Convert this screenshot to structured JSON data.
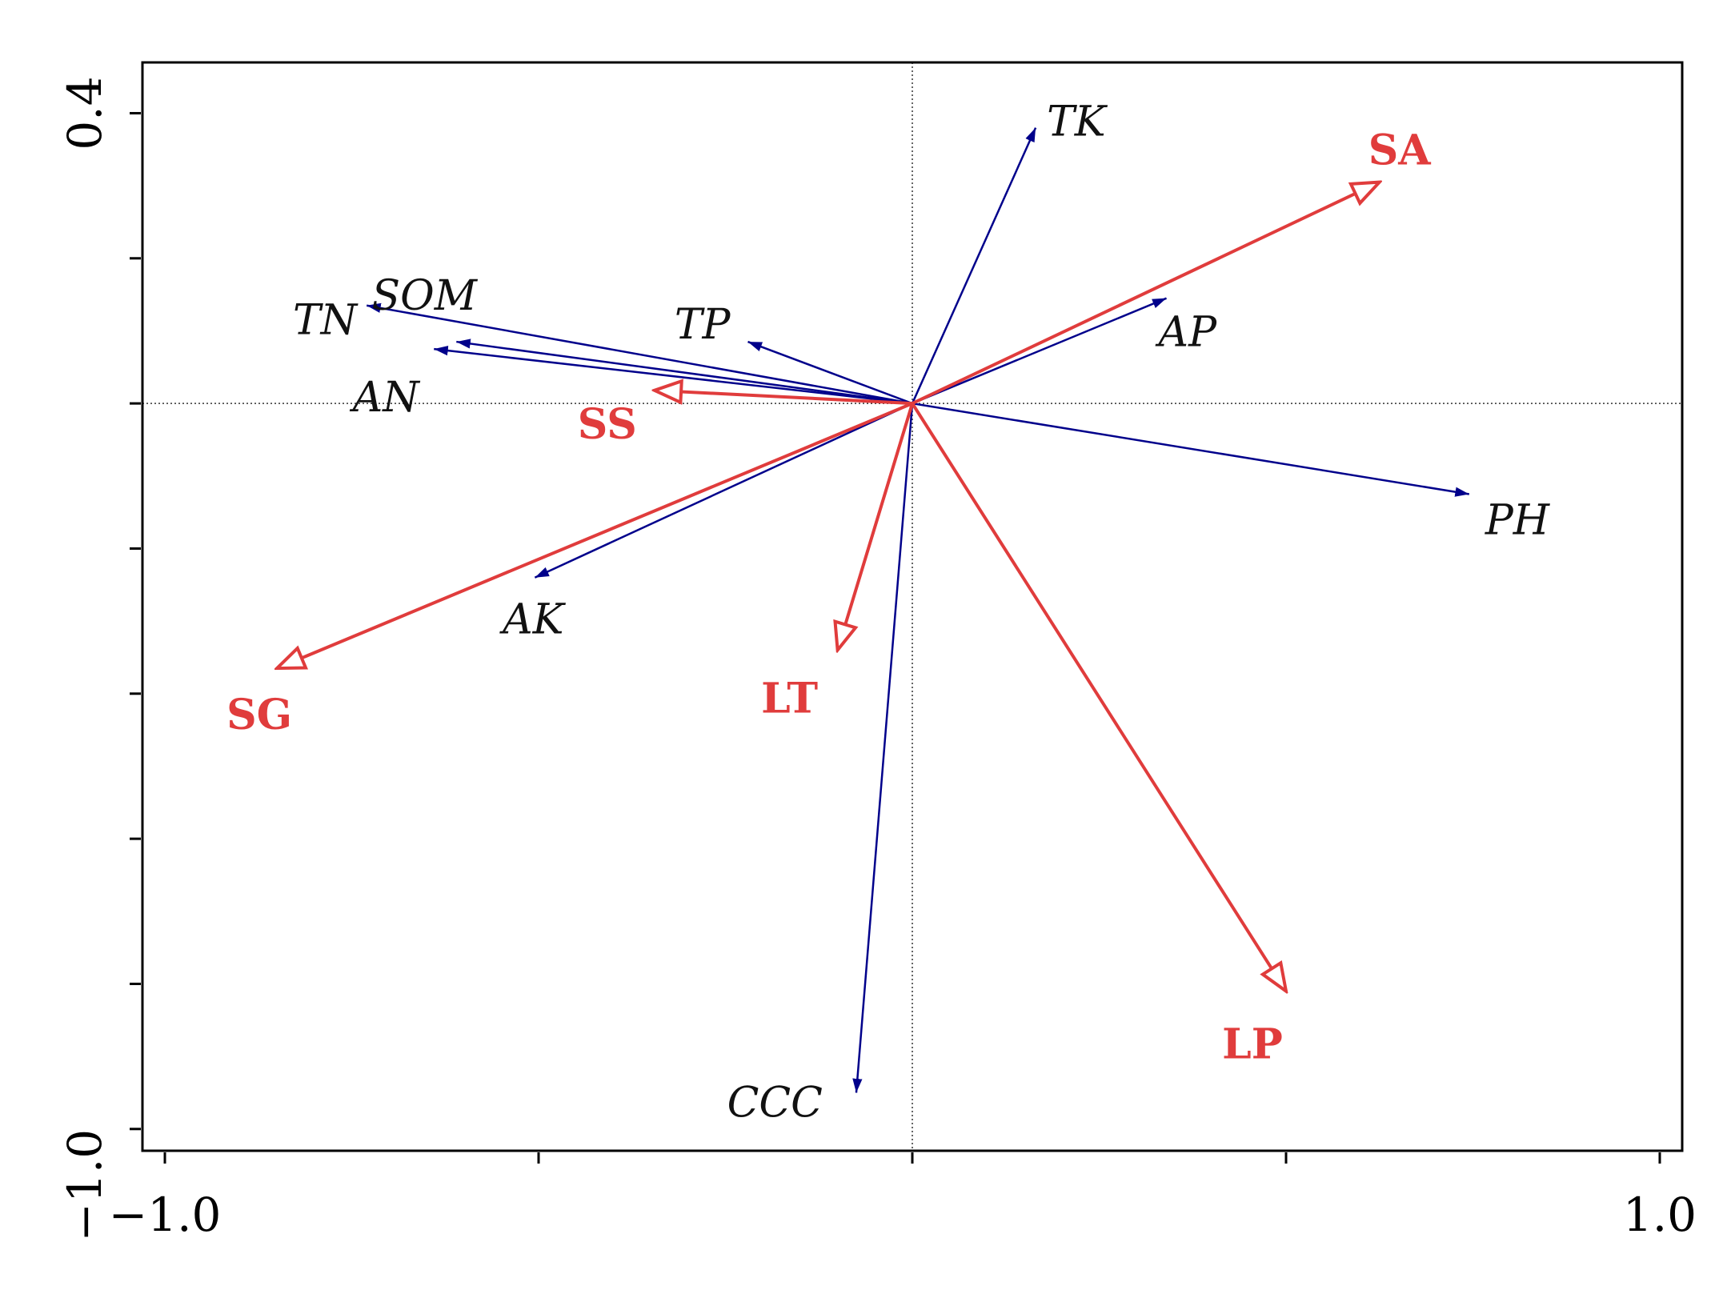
{
  "chart_data": {
    "type": "scatter",
    "subtype": "biplot",
    "title": "",
    "xlabel": "",
    "ylabel": "",
    "xlim": [
      -1.03,
      1.03
    ],
    "ylim": [
      -1.03,
      0.47
    ],
    "x_ticks": [
      -1.0,
      -0.5,
      0.0,
      0.5,
      1.0
    ],
    "x_tick_labels": [
      "−1.0",
      "",
      "",
      "",
      "1.0"
    ],
    "y_ticks": [
      -1.0,
      -0.8,
      -0.6,
      -0.4,
      -0.2,
      0.0,
      0.2,
      0.4
    ],
    "y_tick_labels": [
      "−1.0",
      "",
      "",
      "",
      "",
      "",
      "",
      "0.4"
    ],
    "grid": false,
    "zero_lines": true,
    "legend": "none",
    "colors": {
      "vectors": "#00008b",
      "factors": "#e03c3c"
    },
    "vectors": [
      {
        "name": "TK",
        "x": 0.165,
        "y": 0.38
      },
      {
        "name": "TN",
        "x": -0.73,
        "y": 0.135
      },
      {
        "name": "SOM",
        "x": -0.61,
        "y": 0.085
      },
      {
        "name": "AN",
        "x": -0.64,
        "y": 0.075
      },
      {
        "name": "TP",
        "x": -0.22,
        "y": 0.085
      },
      {
        "name": "AP",
        "x": 0.34,
        "y": 0.145
      },
      {
        "name": "PH",
        "x": 0.745,
        "y": -0.125
      },
      {
        "name": "AK",
        "x": -0.505,
        "y": -0.24
      },
      {
        "name": "CCC",
        "x": -0.075,
        "y": -0.95
      }
    ],
    "factors": [
      {
        "name": "SA",
        "x": 0.625,
        "y": 0.305
      },
      {
        "name": "SS",
        "x": -0.345,
        "y": 0.018
      },
      {
        "name": "SG",
        "x": -0.85,
        "y": -0.365
      },
      {
        "name": "LT",
        "x": -0.1,
        "y": -0.34
      },
      {
        "name": "LP",
        "x": 0.5,
        "y": -0.81
      }
    ]
  }
}
